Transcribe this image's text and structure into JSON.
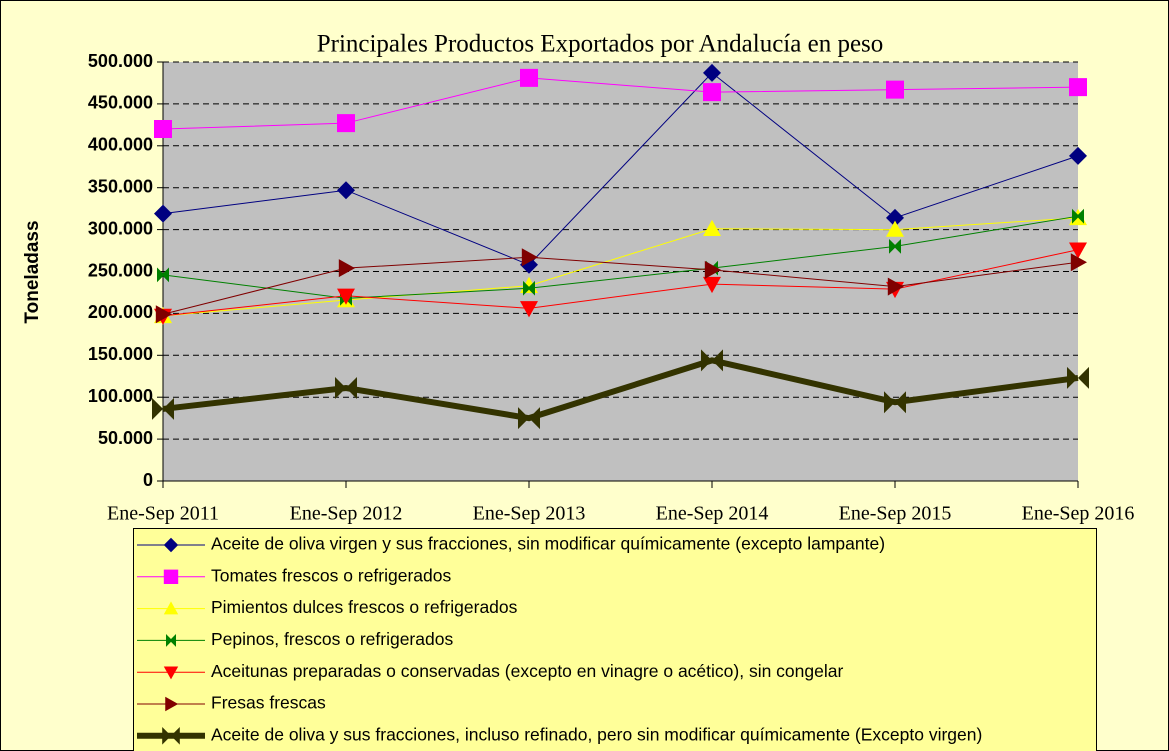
{
  "chart_data": {
    "type": "line",
    "title": "Principales Productos Exportados por Andalucía en peso",
    "y_label": "Toneladass",
    "categories": [
      "Ene-Sep 2011",
      "Ene-Sep 2012",
      "Ene-Sep 2013",
      "Ene-Sep 2014",
      "Ene-Sep 2015",
      "Ene-Sep 2016"
    ],
    "ylim": [
      0,
      500000
    ],
    "yticks": [
      0,
      {
        "value": 50000,
        "label": "50.000"
      },
      {
        "value": 100000,
        "label": "100.000"
      },
      {
        "value": 150000,
        "label": "150.000"
      },
      {
        "value": 200000,
        "label": "200.000"
      },
      {
        "value": 250000,
        "label": "250.000"
      },
      {
        "value": 300000,
        "label": "300.000"
      },
      {
        "value": 350000,
        "label": "350.000"
      },
      {
        "value": 400000,
        "label": "400.000"
      },
      {
        "value": 450000,
        "label": "450.000"
      },
      {
        "value": 500000,
        "label": "500.000"
      }
    ],
    "grid": true,
    "legend": "bottom",
    "series": [
      {
        "name": "Aceite de oliva virgen y sus fracciones, sin modificar químicamente (excepto lampante)",
        "color": "#000080",
        "marker": "diamond",
        "width": 1,
        "values": [
          319000,
          347000,
          258000,
          487000,
          314000,
          388000
        ]
      },
      {
        "name": "Tomates frescos o refrigerados",
        "color": "#ff00ff",
        "marker": "square",
        "width": 1,
        "values": [
          420000,
          427000,
          481000,
          464000,
          467000,
          470000
        ]
      },
      {
        "name": "Pimientos dulces frescos o refrigerados",
        "color": "#ffff00",
        "marker": "triangle-up",
        "width": 1,
        "values": [
          197000,
          216000,
          233000,
          301000,
          300000,
          314000
        ]
      },
      {
        "name": "Pepinos, frescos o refrigerados",
        "color": "#008000",
        "marker": "hourglass",
        "width": 1,
        "values": [
          246000,
          218000,
          230000,
          254000,
          280000,
          316000
        ]
      },
      {
        "name": "Aceitunas preparadas o conservadas (excepto en vinagre o acético), sin congelar",
        "color": "#ff0000",
        "marker": "triangle-down",
        "width": 1,
        "values": [
          197000,
          221000,
          206000,
          235000,
          229000,
          276000
        ]
      },
      {
        "name": "Fresas frescas",
        "color": "#800000",
        "marker": "triangle-right",
        "width": 1,
        "values": [
          199000,
          254000,
          267000,
          252000,
          232000,
          261000
        ]
      },
      {
        "name": "Aceite de oliva y sus fracciones, incluso refinado, pero sin modificar químicamente (Excepto virgen)",
        "color": "#333300",
        "marker": "bowtie",
        "width": 6,
        "values": [
          86000,
          111000,
          75000,
          144000,
          94000,
          123000
        ]
      }
    ]
  }
}
